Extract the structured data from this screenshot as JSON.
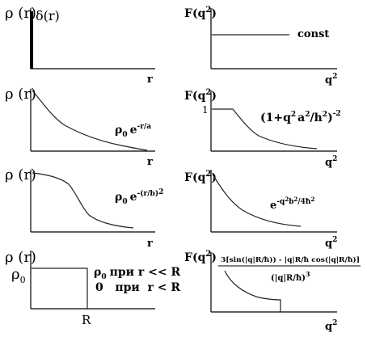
{
  "rho_r": "ρ (r)",
  "rho": "ρ",
  "r_axis": "r",
  "rho0": "ρ",
  "sub0": "0",
  "panels": {
    "p1": {
      "delta": "δ(r)",
      "F": "F(q",
      "F_close": ")",
      "const": "const"
    },
    "p2": {
      "exp": "e",
      "exp_sup": "-r/a",
      "one": "1",
      "form": "(1+q",
      "form2": "a",
      "form3": "/h",
      "form4": ")",
      "form_pow": "-2"
    },
    "p3": {
      "exp": "e",
      "exp_sup": "-(r/b)",
      "exp_sup2": "2",
      "F_exp": "e",
      "F_sup": "-q",
      "F_sup2": "b",
      "F_sup3": "/4ħ",
      "F_sup4": "2"
    },
    "p4": {
      "line1": "при  r << R",
      "line2": "0   при  r < R",
      "R": "R",
      "num": "3[sin(|q|R/ħ)) - |q|R/ħ cos(|q|R/ħ)]",
      "den": "(|q|R/ħ)",
      "den_pow": "3"
    }
  },
  "q_axis": "q",
  "two": "2"
}
